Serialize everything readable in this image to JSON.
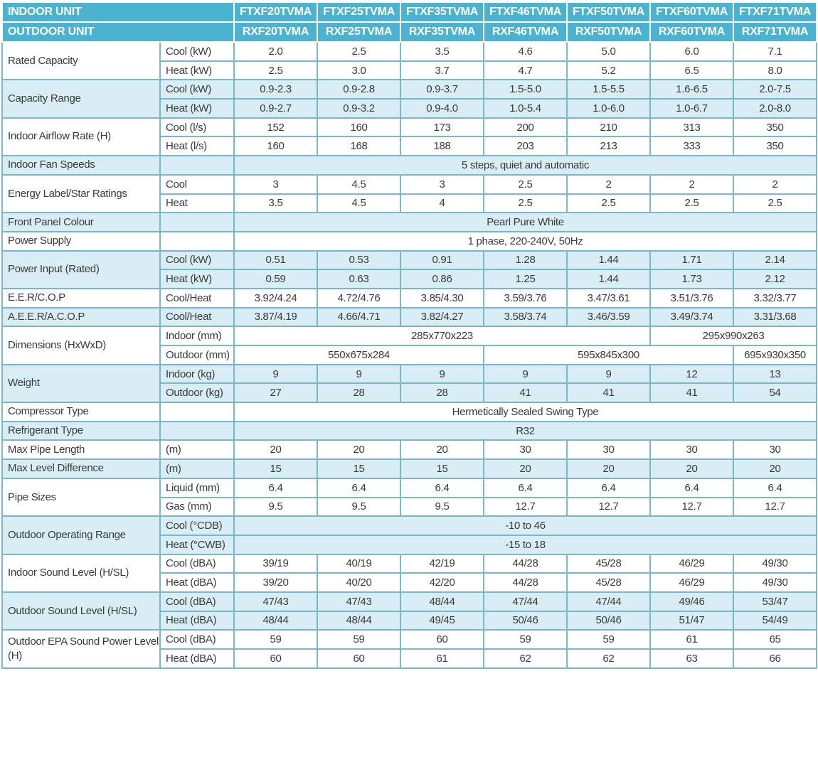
{
  "header": {
    "indoor_unit_label": "INDOOR UNIT",
    "outdoor_unit_label": "OUTDOOR UNIT",
    "indoor_models": [
      "FTXF20TVMA",
      "FTXF25TVMA",
      "FTXF35TVMA",
      "FTXF46TVMA",
      "FTXF50TVMA",
      "FTXF60TVMA",
      "FTXF71TVMA"
    ],
    "outdoor_models": [
      "RXF20TVMA",
      "RXF25TVMA",
      "RXF35TVMA",
      "RXF46TVMA",
      "RXF50TVMA",
      "RXF60TVMA",
      "RXF71TVMA"
    ]
  },
  "groups": [
    {
      "label": "Rated Capacity",
      "shade": false,
      "rows": [
        {
          "sub": "Cool (kW)",
          "cells": [
            [
              "2.0",
              1
            ],
            [
              "2.5",
              1
            ],
            [
              "3.5",
              1
            ],
            [
              "4.6",
              1
            ],
            [
              "5.0",
              1
            ],
            [
              "6.0",
              1
            ],
            [
              "7.1",
              1
            ]
          ]
        },
        {
          "sub": "Heat (kW)",
          "cells": [
            [
              "2.5",
              1
            ],
            [
              "3.0",
              1
            ],
            [
              "3.7",
              1
            ],
            [
              "4.7",
              1
            ],
            [
              "5.2",
              1
            ],
            [
              "6.5",
              1
            ],
            [
              "8.0",
              1
            ]
          ]
        }
      ]
    },
    {
      "label": "Capacity Range",
      "shade": true,
      "rows": [
        {
          "sub": "Cool (kW)",
          "cells": [
            [
              "0.9-2.3",
              1
            ],
            [
              "0.9-2.8",
              1
            ],
            [
              "0.9-3.7",
              1
            ],
            [
              "1.5-5.0",
              1
            ],
            [
              "1.5-5.5",
              1
            ],
            [
              "1.6-6.5",
              1
            ],
            [
              "2.0-7.5",
              1
            ]
          ]
        },
        {
          "sub": "Heat (kW)",
          "cells": [
            [
              "0.9-2.7",
              1
            ],
            [
              "0.9-3.2",
              1
            ],
            [
              "0.9-4.0",
              1
            ],
            [
              "1.0-5.4",
              1
            ],
            [
              "1.0-6.0",
              1
            ],
            [
              "1.0-6.7",
              1
            ],
            [
              "2.0-8.0",
              1
            ]
          ]
        }
      ]
    },
    {
      "label": "Indoor Airflow Rate (H)",
      "shade": false,
      "rows": [
        {
          "sub": "Cool (l/s)",
          "cells": [
            [
              "152",
              1
            ],
            [
              "160",
              1
            ],
            [
              "173",
              1
            ],
            [
              "200",
              1
            ],
            [
              "210",
              1
            ],
            [
              "313",
              1
            ],
            [
              "350",
              1
            ]
          ]
        },
        {
          "sub": "Heat (l/s)",
          "cells": [
            [
              "160",
              1
            ],
            [
              "168",
              1
            ],
            [
              "188",
              1
            ],
            [
              "203",
              1
            ],
            [
              "213",
              1
            ],
            [
              "333",
              1
            ],
            [
              "350",
              1
            ]
          ]
        }
      ]
    },
    {
      "label": "Indoor Fan Speeds",
      "shade": true,
      "rows": [
        {
          "sub": "",
          "cells": [
            [
              "5 steps, quiet and automatic",
              7
            ]
          ]
        }
      ]
    },
    {
      "label": "Energy Label/Star Ratings",
      "shade": false,
      "rows": [
        {
          "sub": "Cool",
          "cells": [
            [
              "3",
              1
            ],
            [
              "4.5",
              1
            ],
            [
              "3",
              1
            ],
            [
              "2.5",
              1
            ],
            [
              "2",
              1
            ],
            [
              "2",
              1
            ],
            [
              "2",
              1
            ]
          ]
        },
        {
          "sub": "Heat",
          "cells": [
            [
              "3.5",
              1
            ],
            [
              "4.5",
              1
            ],
            [
              "4",
              1
            ],
            [
              "2.5",
              1
            ],
            [
              "2.5",
              1
            ],
            [
              "2.5",
              1
            ],
            [
              "2.5",
              1
            ]
          ]
        }
      ]
    },
    {
      "label": "Front Panel Colour",
      "shade": true,
      "rows": [
        {
          "sub": "",
          "cells": [
            [
              "Pearl Pure White",
              7
            ]
          ]
        }
      ]
    },
    {
      "label": "Power Supply",
      "shade": false,
      "rows": [
        {
          "sub": "",
          "cells": [
            [
              "1 phase, 220-240V, 50Hz",
              7
            ]
          ]
        }
      ]
    },
    {
      "label": "Power Input (Rated)",
      "shade": true,
      "rows": [
        {
          "sub": "Cool (kW)",
          "cells": [
            [
              "0.51",
              1
            ],
            [
              "0.53",
              1
            ],
            [
              "0.91",
              1
            ],
            [
              "1.28",
              1
            ],
            [
              "1.44",
              1
            ],
            [
              "1.71",
              1
            ],
            [
              "2.14",
              1
            ]
          ]
        },
        {
          "sub": "Heat (kW)",
          "cells": [
            [
              "0.59",
              1
            ],
            [
              "0.63",
              1
            ],
            [
              "0.86",
              1
            ],
            [
              "1.25",
              1
            ],
            [
              "1.44",
              1
            ],
            [
              "1.73",
              1
            ],
            [
              "2.12",
              1
            ]
          ]
        }
      ]
    },
    {
      "label": "E.E.R/C.O.P",
      "shade": false,
      "rows": [
        {
          "sub": "Cool/Heat",
          "cells": [
            [
              "3.92/4.24",
              1
            ],
            [
              "4.72/4.76",
              1
            ],
            [
              "3.85/4.30",
              1
            ],
            [
              "3.59/3.76",
              1
            ],
            [
              "3.47/3.61",
              1
            ],
            [
              "3.51/3.76",
              1
            ],
            [
              "3.32/3.77",
              1
            ]
          ]
        }
      ]
    },
    {
      "label": "A.E.E.R/A.C.O.P",
      "shade": true,
      "rows": [
        {
          "sub": "Cool/Heat",
          "cells": [
            [
              "3.87/4.19",
              1
            ],
            [
              "4.66/4.71",
              1
            ],
            [
              "3.82/4.27",
              1
            ],
            [
              "3.58/3.74",
              1
            ],
            [
              "3.46/3.59",
              1
            ],
            [
              "3.49/3.74",
              1
            ],
            [
              "3.31/3.68",
              1
            ]
          ]
        }
      ]
    },
    {
      "label": "Dimensions (HxWxD)",
      "shade": false,
      "rows": [
        {
          "sub": "Indoor (mm)",
          "cells": [
            [
              "285x770x223",
              5
            ],
            [
              "295x990x263",
              2
            ]
          ]
        },
        {
          "sub": "Outdoor (mm)",
          "cells": [
            [
              "550x675x284",
              3
            ],
            [
              "595x845x300",
              3
            ],
            [
              "695x930x350",
              1
            ]
          ]
        }
      ]
    },
    {
      "label": "Weight",
      "shade": true,
      "rows": [
        {
          "sub": "Indoor (kg)",
          "cells": [
            [
              "9",
              1
            ],
            [
              "9",
              1
            ],
            [
              "9",
              1
            ],
            [
              "9",
              1
            ],
            [
              "9",
              1
            ],
            [
              "12",
              1
            ],
            [
              "13",
              1
            ]
          ]
        },
        {
          "sub": "Outdoor (kg)",
          "cells": [
            [
              "27",
              1
            ],
            [
              "28",
              1
            ],
            [
              "28",
              1
            ],
            [
              "41",
              1
            ],
            [
              "41",
              1
            ],
            [
              "41",
              1
            ],
            [
              "54",
              1
            ]
          ]
        }
      ]
    },
    {
      "label": "Compressor Type",
      "shade": false,
      "rows": [
        {
          "sub": "",
          "cells": [
            [
              "Hermetically Sealed Swing Type",
              7
            ]
          ]
        }
      ]
    },
    {
      "label": "Refrigerant Type",
      "shade": true,
      "rows": [
        {
          "sub": "",
          "cells": [
            [
              "R32",
              7
            ]
          ]
        }
      ]
    },
    {
      "label": "Max Pipe Length",
      "shade": false,
      "rows": [
        {
          "sub": "(m)",
          "cells": [
            [
              "20",
              1
            ],
            [
              "20",
              1
            ],
            [
              "20",
              1
            ],
            [
              "30",
              1
            ],
            [
              "30",
              1
            ],
            [
              "30",
              1
            ],
            [
              "30",
              1
            ]
          ]
        }
      ]
    },
    {
      "label": "Max Level Difference",
      "shade": true,
      "rows": [
        {
          "sub": "(m)",
          "cells": [
            [
              "15",
              1
            ],
            [
              "15",
              1
            ],
            [
              "15",
              1
            ],
            [
              "20",
              1
            ],
            [
              "20",
              1
            ],
            [
              "20",
              1
            ],
            [
              "20",
              1
            ]
          ]
        }
      ]
    },
    {
      "label": "Pipe Sizes",
      "shade": false,
      "rows": [
        {
          "sub": "Liquid (mm)",
          "cells": [
            [
              "6.4",
              1
            ],
            [
              "6.4",
              1
            ],
            [
              "6.4",
              1
            ],
            [
              "6.4",
              1
            ],
            [
              "6.4",
              1
            ],
            [
              "6.4",
              1
            ],
            [
              "6.4",
              1
            ]
          ]
        },
        {
          "sub": "Gas (mm)",
          "cells": [
            [
              "9.5",
              1
            ],
            [
              "9.5",
              1
            ],
            [
              "9.5",
              1
            ],
            [
              "12.7",
              1
            ],
            [
              "12.7",
              1
            ],
            [
              "12.7",
              1
            ],
            [
              "12.7",
              1
            ]
          ]
        }
      ]
    },
    {
      "label": "Outdoor Operating Range",
      "shade": true,
      "rows": [
        {
          "sub": "Cool (°CDB)",
          "cells": [
            [
              "-10 to 46",
              7
            ]
          ]
        },
        {
          "sub": "Heat (°CWB)",
          "cells": [
            [
              "-15 to 18",
              7
            ]
          ]
        }
      ]
    },
    {
      "label": "Indoor Sound Level (H/SL)",
      "shade": false,
      "rows": [
        {
          "sub": "Cool (dBA)",
          "cells": [
            [
              "39/19",
              1
            ],
            [
              "40/19",
              1
            ],
            [
              "42/19",
              1
            ],
            [
              "44/28",
              1
            ],
            [
              "45/28",
              1
            ],
            [
              "46/29",
              1
            ],
            [
              "49/30",
              1
            ]
          ]
        },
        {
          "sub": "Heat (dBA)",
          "cells": [
            [
              "39/20",
              1
            ],
            [
              "40/20",
              1
            ],
            [
              "42/20",
              1
            ],
            [
              "44/28",
              1
            ],
            [
              "45/28",
              1
            ],
            [
              "46/29",
              1
            ],
            [
              "49/30",
              1
            ]
          ]
        }
      ]
    },
    {
      "label": "Outdoor Sound Level (H/SL)",
      "shade": true,
      "rows": [
        {
          "sub": "Cool (dBA)",
          "cells": [
            [
              "47/43",
              1
            ],
            [
              "47/43",
              1
            ],
            [
              "48/44",
              1
            ],
            [
              "47/44",
              1
            ],
            [
              "47/44",
              1
            ],
            [
              "49/46",
              1
            ],
            [
              "53/47",
              1
            ]
          ]
        },
        {
          "sub": "Heat (dBA)",
          "cells": [
            [
              "48/44",
              1
            ],
            [
              "48/44",
              1
            ],
            [
              "49/45",
              1
            ],
            [
              "50/46",
              1
            ],
            [
              "50/46",
              1
            ],
            [
              "51/47",
              1
            ],
            [
              "54/49",
              1
            ]
          ]
        }
      ]
    },
    {
      "label": "Outdoor EPA Sound Power Level (H)",
      "shade": false,
      "rows": [
        {
          "sub": "Cool (dBA)",
          "cells": [
            [
              "59",
              1
            ],
            [
              "59",
              1
            ],
            [
              "60",
              1
            ],
            [
              "59",
              1
            ],
            [
              "59",
              1
            ],
            [
              "61",
              1
            ],
            [
              "65",
              1
            ]
          ]
        },
        {
          "sub": "Heat (dBA)",
          "cells": [
            [
              "60",
              1
            ],
            [
              "60",
              1
            ],
            [
              "61",
              1
            ],
            [
              "62",
              1
            ],
            [
              "62",
              1
            ],
            [
              "63",
              1
            ],
            [
              "66",
              1
            ]
          ]
        }
      ]
    }
  ],
  "colors": {
    "header_bg": "#4bb2cf",
    "header_text": "#ffffff",
    "shade_bg": "#d9eef4",
    "border": "#7ab8c9",
    "text": "#3a3a3a"
  }
}
